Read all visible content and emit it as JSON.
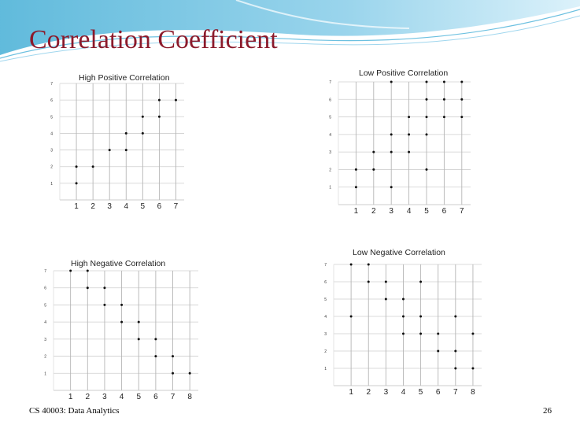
{
  "slide": {
    "title": "Correlation Coefficient",
    "footer": "CS 40003: Data Analytics",
    "page_number": "26"
  },
  "colors": {
    "title": "#8b1a2b",
    "accent_wave": "#5bb8d9",
    "point": "#111111",
    "grid": "#cfcfcf"
  },
  "chart_data": [
    {
      "type": "scatter",
      "title": "High Positive Correlation",
      "xlabel": "",
      "ylabel": "",
      "xlim": [
        0,
        7.5
      ],
      "ylim": [
        0,
        7
      ],
      "xticks": [
        1,
        2,
        3,
        4,
        5,
        6,
        7
      ],
      "yticks": [
        1,
        2,
        3,
        4,
        5,
        6,
        7
      ],
      "grid": true,
      "points": [
        [
          1,
          1
        ],
        [
          1,
          2
        ],
        [
          2,
          2
        ],
        [
          3,
          3
        ],
        [
          4,
          3
        ],
        [
          4,
          4
        ],
        [
          5,
          4
        ],
        [
          5,
          5
        ],
        [
          6,
          5
        ],
        [
          6,
          6
        ],
        [
          7,
          6
        ]
      ]
    },
    {
      "type": "scatter",
      "title": "Low Positive Correlation",
      "xlabel": "",
      "ylabel": "",
      "xlim": [
        0,
        7.5
      ],
      "ylim": [
        0,
        7
      ],
      "xticks": [
        1,
        2,
        3,
        4,
        5,
        6,
        7
      ],
      "yticks": [
        1,
        2,
        3,
        4,
        5,
        6,
        7
      ],
      "grid": true,
      "points": [
        [
          1,
          1
        ],
        [
          1,
          2
        ],
        [
          2,
          2
        ],
        [
          2,
          3
        ],
        [
          3,
          1
        ],
        [
          3,
          3
        ],
        [
          3,
          4
        ],
        [
          3,
          7
        ],
        [
          4,
          3
        ],
        [
          4,
          4
        ],
        [
          4,
          5
        ],
        [
          5,
          2
        ],
        [
          5,
          4
        ],
        [
          5,
          5
        ],
        [
          5,
          6
        ],
        [
          5,
          7
        ],
        [
          6,
          5
        ],
        [
          6,
          6
        ],
        [
          6,
          7
        ],
        [
          7,
          5
        ],
        [
          7,
          6
        ],
        [
          7,
          7
        ]
      ]
    },
    {
      "type": "scatter",
      "title": "High Negative Correlation",
      "xlabel": "",
      "ylabel": "",
      "xlim": [
        0,
        8.5
      ],
      "ylim": [
        0,
        7
      ],
      "xticks": [
        1,
        2,
        3,
        4,
        5,
        6,
        7,
        8
      ],
      "yticks": [
        1,
        2,
        3,
        4,
        5,
        6,
        7
      ],
      "grid": true,
      "points": [
        [
          1,
          7
        ],
        [
          2,
          7
        ],
        [
          2,
          6
        ],
        [
          3,
          6
        ],
        [
          3,
          5
        ],
        [
          4,
          5
        ],
        [
          4,
          4
        ],
        [
          5,
          4
        ],
        [
          5,
          3
        ],
        [
          6,
          3
        ],
        [
          6,
          2
        ],
        [
          7,
          2
        ],
        [
          7,
          1
        ],
        [
          8,
          1
        ]
      ]
    },
    {
      "type": "scatter",
      "title": "Low Negative Correlation",
      "xlabel": "",
      "ylabel": "",
      "xlim": [
        0,
        8.5
      ],
      "ylim": [
        0,
        7
      ],
      "xticks": [
        1,
        2,
        3,
        4,
        5,
        6,
        7,
        8
      ],
      "yticks": [
        1,
        2,
        3,
        4,
        5,
        6,
        7
      ],
      "grid": true,
      "points": [
        [
          1,
          4
        ],
        [
          1,
          7
        ],
        [
          2,
          6
        ],
        [
          2,
          7
        ],
        [
          3,
          5
        ],
        [
          3,
          6
        ],
        [
          4,
          3
        ],
        [
          4,
          4
        ],
        [
          4,
          5
        ],
        [
          5,
          3
        ],
        [
          5,
          4
        ],
        [
          5,
          6
        ],
        [
          6,
          2
        ],
        [
          6,
          3
        ],
        [
          7,
          1
        ],
        [
          7,
          2
        ],
        [
          7,
          4
        ],
        [
          8,
          1
        ],
        [
          8,
          3
        ]
      ]
    }
  ]
}
